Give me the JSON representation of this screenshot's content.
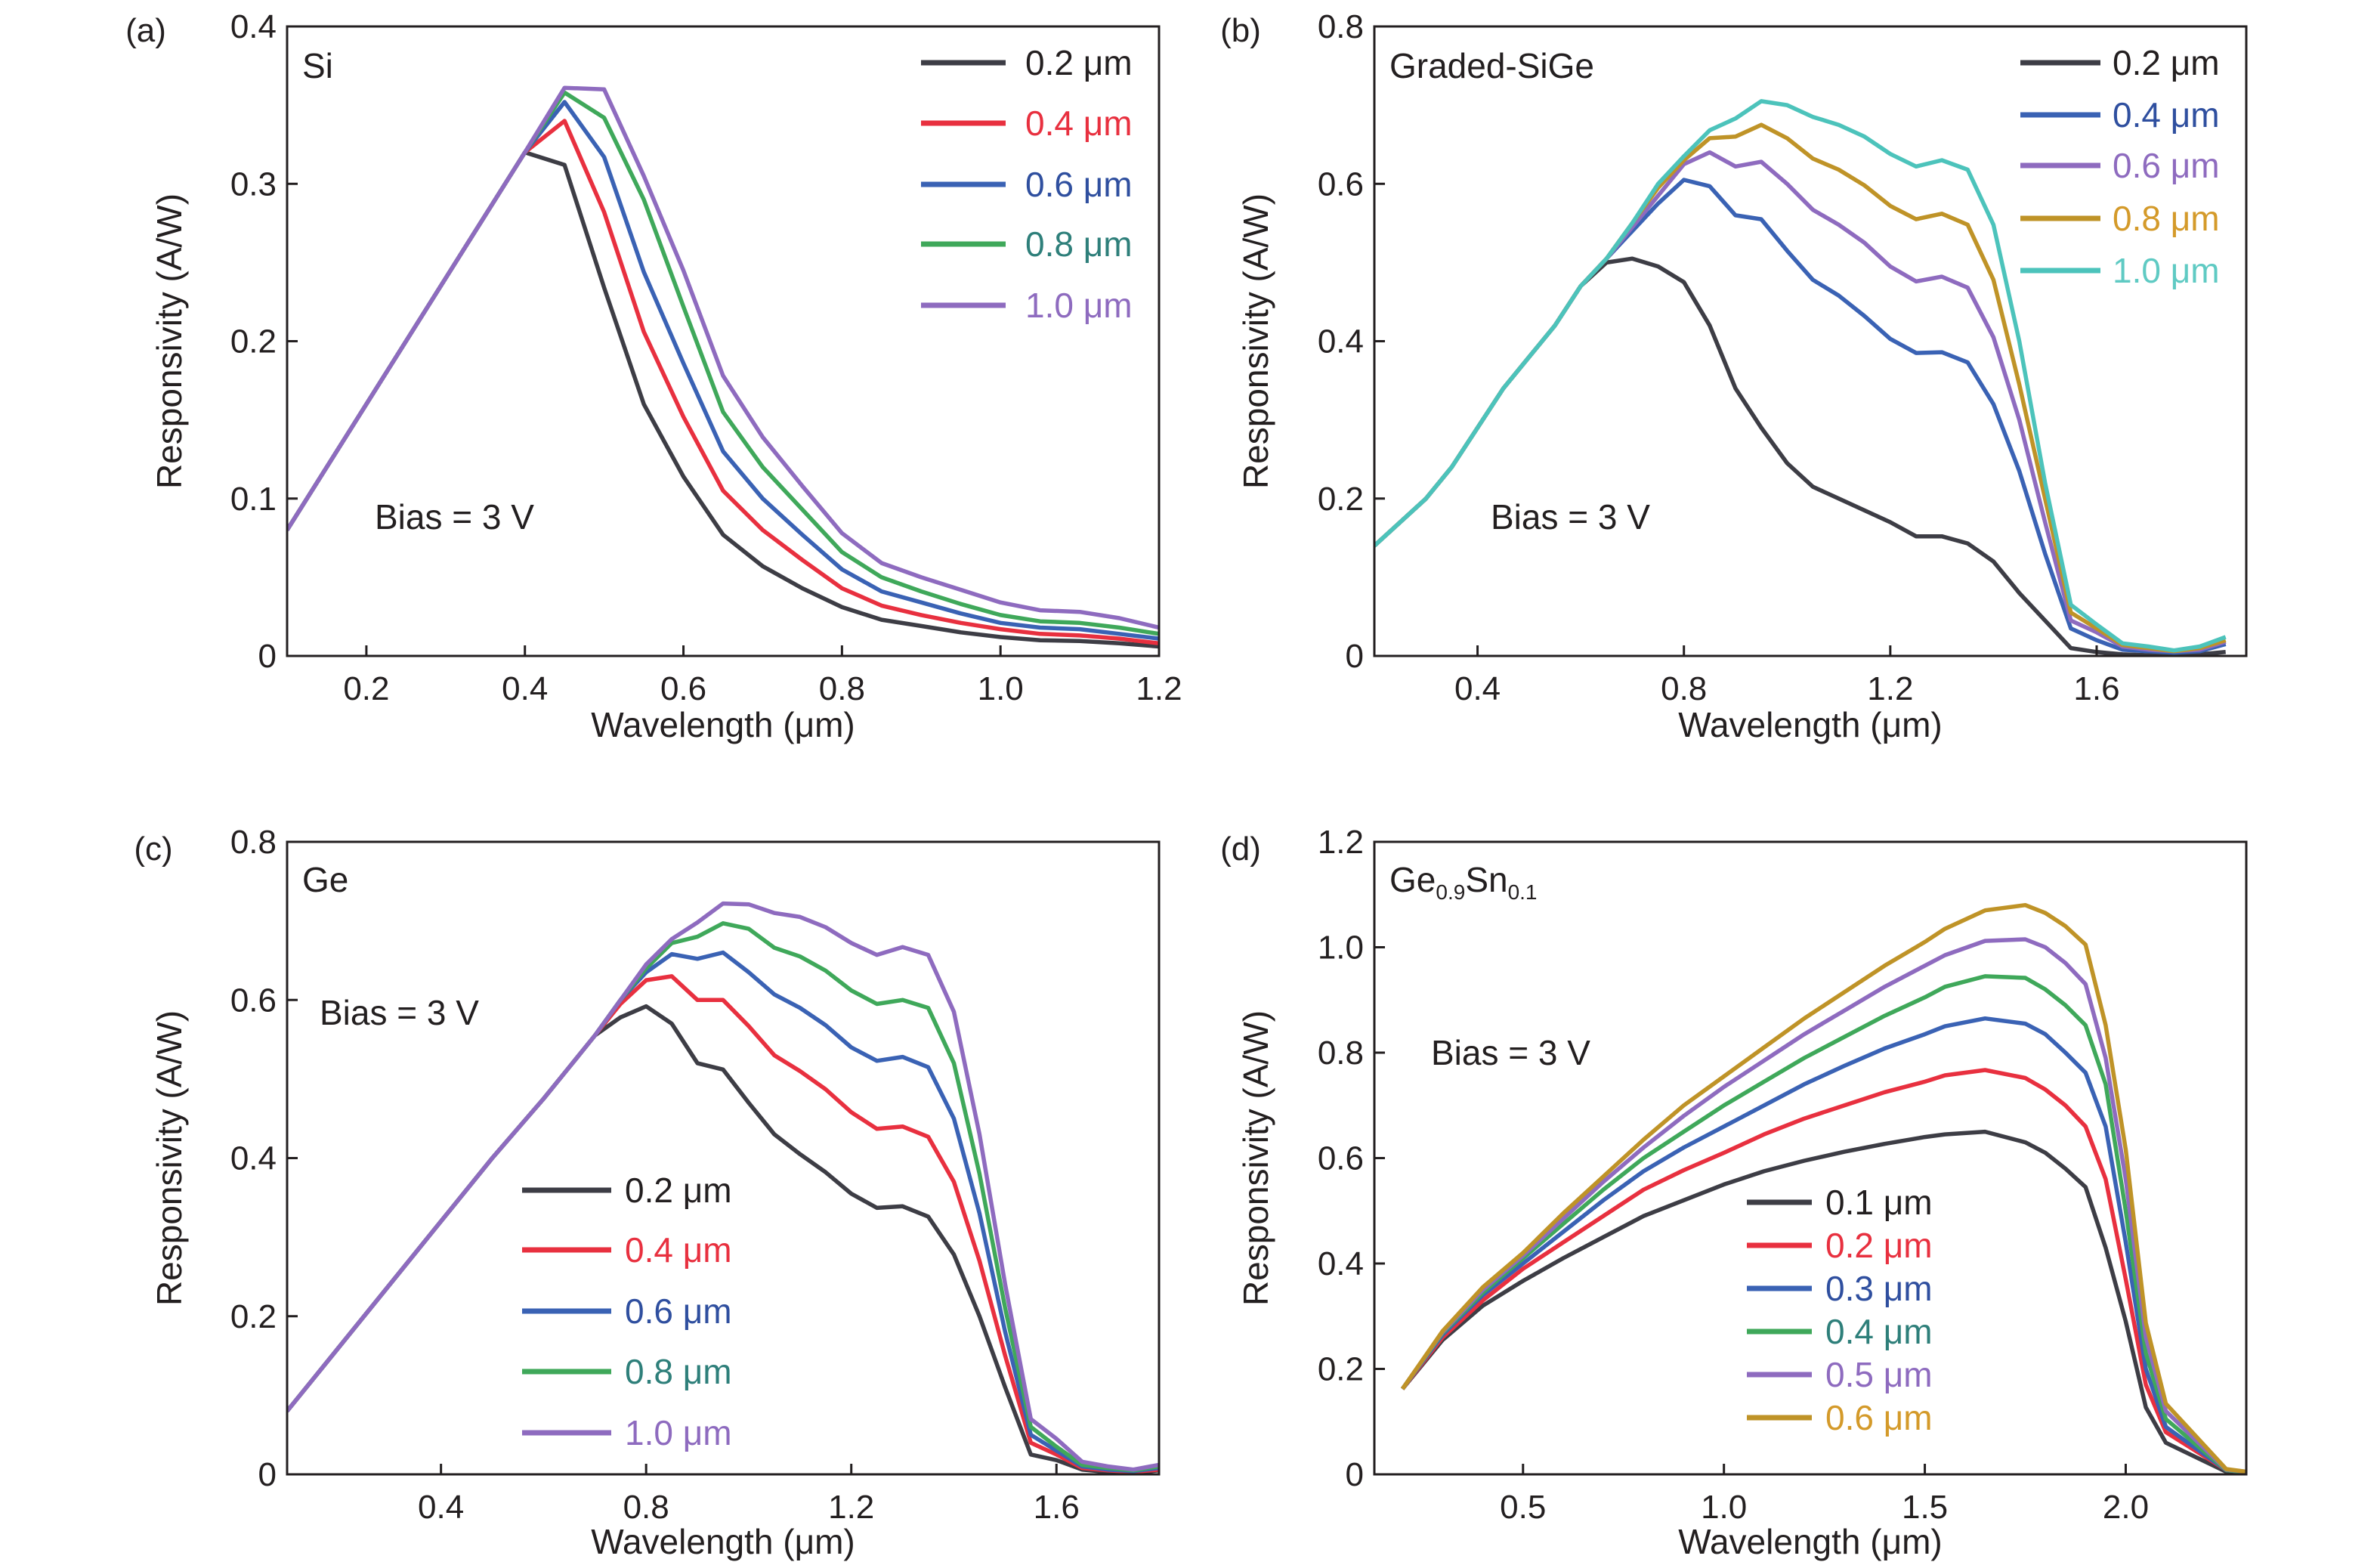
{
  "chart_data": [
    {
      "type": "line",
      "panel_label": "(a)",
      "material": {
        "main": "Si"
      },
      "annotation": "Bias = 3 V",
      "xlabel": "Wavelength (μm)",
      "ylabel": "Responsivity  (A/W)",
      "xlim": [
        0.1,
        1.2
      ],
      "ylim": [
        0,
        0.4
      ],
      "xticks": [
        0.2,
        0.4,
        0.6,
        0.8,
        1.0,
        1.2
      ],
      "xtick_labels": [
        "0.2",
        "0.4",
        "0.6",
        "0.8",
        "1.0",
        "1.2"
      ],
      "yticks": [
        0,
        0.1,
        0.2,
        0.3,
        0.4
      ],
      "ytick_labels": [
        "0",
        "0.1",
        "0.2",
        "0.3",
        "0.4"
      ],
      "legend_position": "top-right",
      "x": [
        0.1,
        0.2,
        0.3,
        0.4,
        0.45,
        0.5,
        0.55,
        0.6,
        0.65,
        0.7,
        0.75,
        0.8,
        0.85,
        0.9,
        0.95,
        1.0,
        1.05,
        1.1,
        1.15,
        1.2
      ],
      "series": [
        {
          "name": "0.2 μm",
          "color": "#3d3d45",
          "label_color": "#231f20",
          "values": [
            0.08,
            0.16,
            0.24,
            0.32,
            0.312,
            0.234,
            0.16,
            0.114,
            0.077,
            0.057,
            0.043,
            0.031,
            0.023,
            0.019,
            0.015,
            0.012,
            0.01,
            0.0095,
            0.008,
            0.006
          ]
        },
        {
          "name": "0.4 μm",
          "color": "#e8303f",
          "label_color": "#e8303f",
          "values": [
            0.08,
            0.16,
            0.24,
            0.32,
            0.34,
            0.282,
            0.206,
            0.152,
            0.105,
            0.08,
            0.061,
            0.043,
            0.032,
            0.026,
            0.021,
            0.017,
            0.014,
            0.013,
            0.011,
            0.008
          ]
        },
        {
          "name": "0.6 μm",
          "color": "#3a62b4",
          "label_color": "#2f4f9f",
          "values": [
            0.08,
            0.16,
            0.24,
            0.32,
            0.352,
            0.317,
            0.244,
            0.186,
            0.13,
            0.1,
            0.077,
            0.055,
            0.041,
            0.034,
            0.027,
            0.021,
            0.018,
            0.017,
            0.014,
            0.011
          ]
        },
        {
          "name": "0.8 μm",
          "color": "#3fa85a",
          "label_color": "#2e7f7a",
          "values": [
            0.08,
            0.16,
            0.24,
            0.32,
            0.358,
            0.342,
            0.29,
            0.222,
            0.155,
            0.12,
            0.093,
            0.066,
            0.05,
            0.041,
            0.033,
            0.026,
            0.022,
            0.021,
            0.018,
            0.014
          ]
        },
        {
          "name": "1.0 μm",
          "color": "#8e6bbf",
          "label_color": "#8e6bbf",
          "values": [
            0.08,
            0.16,
            0.24,
            0.32,
            0.361,
            0.36,
            0.305,
            0.245,
            0.178,
            0.139,
            0.108,
            0.078,
            0.059,
            0.05,
            0.042,
            0.034,
            0.029,
            0.028,
            0.024,
            0.018
          ]
        }
      ]
    },
    {
      "type": "line",
      "panel_label": "(b)",
      "material": {
        "main": "Graded-SiGe"
      },
      "annotation": "Bias = 3 V",
      "xlabel": "Wavelength (μm)",
      "ylabel": "Responsivity  (A/W)",
      "xlim": [
        0.2,
        1.89
      ],
      "ylim": [
        0,
        0.8
      ],
      "xticks": [
        0.4,
        0.8,
        1.2,
        1.6
      ],
      "xtick_labels": [
        "0.4",
        "0.8",
        "1.2",
        "1.6"
      ],
      "yticks": [
        0,
        0.2,
        0.4,
        0.6,
        0.8
      ],
      "ytick_labels": [
        "0",
        "0.2",
        "0.4",
        "0.6",
        "0.8"
      ],
      "legend_position": "top-right",
      "x": [
        0.2,
        0.3,
        0.35,
        0.4,
        0.45,
        0.5,
        0.55,
        0.6,
        0.65,
        0.7,
        0.75,
        0.8,
        0.85,
        0.9,
        0.95,
        1.0,
        1.05,
        1.1,
        1.15,
        1.2,
        1.25,
        1.3,
        1.35,
        1.4,
        1.45,
        1.5,
        1.55,
        1.6,
        1.65,
        1.7,
        1.75,
        1.8,
        1.85
      ],
      "series": [
        {
          "name": "0.2 μm",
          "color": "#3d3d45",
          "label_color": "#231f20",
          "values": [
            0.14,
            0.2,
            0.24,
            0.29,
            0.34,
            0.38,
            0.42,
            0.47,
            0.5,
            0.505,
            0.495,
            0.475,
            0.42,
            0.34,
            0.29,
            0.245,
            0.215,
            0.2,
            0.185,
            0.17,
            0.152,
            0.152,
            0.143,
            0.12,
            0.08,
            0.045,
            0.01,
            0.005,
            0.002,
            0.001,
            0.001,
            0.002,
            0.005
          ]
        },
        {
          "name": "0.4 μm",
          "color": "#3a62b4",
          "label_color": "#2f4f9f",
          "values": [
            0.14,
            0.2,
            0.24,
            0.29,
            0.34,
            0.38,
            0.42,
            0.47,
            0.505,
            0.54,
            0.575,
            0.605,
            0.597,
            0.56,
            0.555,
            0.515,
            0.478,
            0.458,
            0.432,
            0.403,
            0.385,
            0.386,
            0.373,
            0.32,
            0.235,
            0.13,
            0.035,
            0.02,
            0.008,
            0.006,
            0.004,
            0.006,
            0.015
          ]
        },
        {
          "name": "0.6 μm",
          "color": "#8e6bbf",
          "label_color": "#8e6bbf",
          "values": [
            0.14,
            0.2,
            0.24,
            0.29,
            0.34,
            0.38,
            0.42,
            0.47,
            0.505,
            0.545,
            0.585,
            0.625,
            0.64,
            0.622,
            0.628,
            0.6,
            0.567,
            0.548,
            0.525,
            0.495,
            0.476,
            0.482,
            0.468,
            0.405,
            0.3,
            0.17,
            0.045,
            0.03,
            0.012,
            0.008,
            0.006,
            0.008,
            0.018
          ]
        },
        {
          "name": "0.8 μm",
          "color": "#bf9327",
          "label_color": "#d49a2a",
          "values": [
            0.14,
            0.2,
            0.24,
            0.29,
            0.34,
            0.38,
            0.42,
            0.47,
            0.505,
            0.55,
            0.595,
            0.63,
            0.658,
            0.66,
            0.675,
            0.658,
            0.632,
            0.618,
            0.598,
            0.572,
            0.555,
            0.562,
            0.548,
            0.478,
            0.345,
            0.2,
            0.055,
            0.035,
            0.014,
            0.01,
            0.006,
            0.01,
            0.02
          ]
        },
        {
          "name": "1.0 μm",
          "color": "#4cc3bb",
          "label_color": "#5fcac3",
          "values": [
            0.14,
            0.2,
            0.24,
            0.29,
            0.34,
            0.38,
            0.42,
            0.47,
            0.505,
            0.55,
            0.6,
            0.635,
            0.668,
            0.683,
            0.705,
            0.7,
            0.685,
            0.675,
            0.66,
            0.638,
            0.622,
            0.63,
            0.618,
            0.548,
            0.4,
            0.22,
            0.065,
            0.04,
            0.016,
            0.012,
            0.007,
            0.012,
            0.024
          ]
        }
      ]
    },
    {
      "type": "line",
      "panel_label": "(c)",
      "material": {
        "main": "Ge"
      },
      "annotation": "Bias = 3 V",
      "xlabel": "Wavelength (μm)",
      "ylabel": "Responsivity (A/W)",
      "xlim": [
        0.1,
        1.8
      ],
      "ylim": [
        0,
        0.8
      ],
      "xticks": [
        0.4,
        0.8,
        1.2,
        1.6
      ],
      "xtick_labels": [
        "0.4",
        "0.8",
        "1.2",
        "1.6"
      ],
      "yticks": [
        0,
        0.2,
        0.4,
        0.6,
        0.8
      ],
      "ytick_labels": [
        "0",
        "0.2",
        "0.4",
        "0.6",
        "0.8"
      ],
      "legend_position": "bottom-center",
      "x": [
        0.1,
        0.2,
        0.3,
        0.4,
        0.5,
        0.6,
        0.65,
        0.7,
        0.75,
        0.8,
        0.85,
        0.9,
        0.95,
        1.0,
        1.05,
        1.1,
        1.15,
        1.2,
        1.25,
        1.3,
        1.35,
        1.4,
        1.45,
        1.5,
        1.55,
        1.6,
        1.65,
        1.7,
        1.75,
        1.8
      ],
      "series": [
        {
          "name": "0.2 μm",
          "color": "#3d3d45",
          "label_color": "#231f20",
          "values": [
            0.08,
            0.16,
            0.24,
            0.32,
            0.4,
            0.475,
            0.515,
            0.555,
            0.578,
            0.592,
            0.57,
            0.52,
            0.512,
            0.47,
            0.43,
            0.405,
            0.382,
            0.355,
            0.337,
            0.339,
            0.326,
            0.278,
            0.2,
            0.11,
            0.025,
            0.018,
            0.006,
            0.003,
            0.002,
            0.005
          ]
        },
        {
          "name": "0.4 μm",
          "color": "#e8303f",
          "label_color": "#e8303f",
          "values": [
            0.08,
            0.16,
            0.24,
            0.32,
            0.4,
            0.475,
            0.515,
            0.555,
            0.595,
            0.625,
            0.63,
            0.6,
            0.6,
            0.567,
            0.53,
            0.51,
            0.487,
            0.458,
            0.437,
            0.44,
            0.427,
            0.37,
            0.27,
            0.15,
            0.04,
            0.025,
            0.008,
            0.005,
            0.003,
            0.006
          ]
        },
        {
          "name": "0.6 μm",
          "color": "#3a62b4",
          "label_color": "#2f4f9f",
          "values": [
            0.08,
            0.16,
            0.24,
            0.32,
            0.4,
            0.475,
            0.515,
            0.555,
            0.6,
            0.635,
            0.658,
            0.652,
            0.66,
            0.635,
            0.607,
            0.59,
            0.568,
            0.54,
            0.523,
            0.528,
            0.515,
            0.45,
            0.33,
            0.18,
            0.05,
            0.03,
            0.01,
            0.006,
            0.004,
            0.008
          ]
        },
        {
          "name": "0.8 μm",
          "color": "#3fa85a",
          "label_color": "#2e7f7a",
          "values": [
            0.08,
            0.16,
            0.24,
            0.32,
            0.4,
            0.475,
            0.515,
            0.555,
            0.6,
            0.64,
            0.672,
            0.68,
            0.697,
            0.69,
            0.666,
            0.655,
            0.637,
            0.612,
            0.595,
            0.6,
            0.59,
            0.52,
            0.38,
            0.21,
            0.06,
            0.035,
            0.012,
            0.008,
            0.005,
            0.01
          ]
        },
        {
          "name": "1.0 μm",
          "color": "#8e6bbf",
          "label_color": "#8e6bbf",
          "values": [
            0.08,
            0.16,
            0.24,
            0.32,
            0.4,
            0.475,
            0.515,
            0.555,
            0.6,
            0.645,
            0.677,
            0.698,
            0.722,
            0.721,
            0.71,
            0.705,
            0.692,
            0.672,
            0.657,
            0.667,
            0.657,
            0.585,
            0.43,
            0.24,
            0.07,
            0.045,
            0.016,
            0.01,
            0.006,
            0.012
          ]
        }
      ]
    },
    {
      "type": "line",
      "panel_label": "(d)",
      "material": {
        "main": "Ge",
        "sub1": "0.9",
        "main2": "Sn",
        "sub2": "0.1"
      },
      "annotation": "Bias = 3 V",
      "xlabel": "Wavelength (μm)",
      "ylabel": "Responsivity (A/W)",
      "xlim": [
        0.13,
        2.3
      ],
      "ylim": [
        0,
        1.2
      ],
      "xticks": [
        0.5,
        1.0,
        1.5,
        2.0
      ],
      "xtick_labels": [
        "0.5",
        "1.0",
        "1.5",
        "2.0"
      ],
      "yticks": [
        0,
        0.2,
        0.4,
        0.6,
        0.8,
        1.0,
        1.2
      ],
      "ytick_labels": [
        "0",
        "0.2",
        "0.4",
        "0.6",
        "0.8",
        "1.0",
        "1.2"
      ],
      "legend_position": "bottom-center",
      "x": [
        0.2,
        0.3,
        0.4,
        0.5,
        0.6,
        0.7,
        0.8,
        0.9,
        1.0,
        1.1,
        1.2,
        1.3,
        1.4,
        1.5,
        1.55,
        1.65,
        1.75,
        1.8,
        1.85,
        1.9,
        1.95,
        2.0,
        2.05,
        2.1,
        2.25,
        2.3
      ],
      "series": [
        {
          "name": "0.1 μm",
          "color": "#3d3d45",
          "label_color": "#231f20",
          "values": [
            0.162,
            0.255,
            0.32,
            0.367,
            0.41,
            0.45,
            0.49,
            0.52,
            0.55,
            0.575,
            0.595,
            0.612,
            0.627,
            0.64,
            0.645,
            0.65,
            0.63,
            0.61,
            0.58,
            0.545,
            0.43,
            0.29,
            0.127,
            0.06,
            0.005,
            0.003
          ]
        },
        {
          "name": "0.2 μm",
          "color": "#e8303f",
          "label_color": "#e8303f",
          "values": [
            0.162,
            0.26,
            0.33,
            0.39,
            0.44,
            0.49,
            0.54,
            0.577,
            0.61,
            0.645,
            0.675,
            0.7,
            0.725,
            0.745,
            0.757,
            0.767,
            0.752,
            0.73,
            0.7,
            0.66,
            0.56,
            0.37,
            0.17,
            0.08,
            0.008,
            0.004
          ]
        },
        {
          "name": "0.3 μm",
          "color": "#3a62b4",
          "label_color": "#2f4f9f",
          "values": [
            0.162,
            0.265,
            0.34,
            0.4,
            0.46,
            0.52,
            0.575,
            0.62,
            0.66,
            0.7,
            0.74,
            0.775,
            0.808,
            0.835,
            0.85,
            0.865,
            0.855,
            0.835,
            0.8,
            0.762,
            0.66,
            0.44,
            0.2,
            0.09,
            0.008,
            0.004
          ]
        },
        {
          "name": "0.4 μm",
          "color": "#3fa85a",
          "label_color": "#2e7f7a",
          "values": [
            0.162,
            0.268,
            0.345,
            0.41,
            0.475,
            0.54,
            0.6,
            0.65,
            0.7,
            0.745,
            0.79,
            0.83,
            0.87,
            0.905,
            0.925,
            0.945,
            0.942,
            0.92,
            0.89,
            0.852,
            0.74,
            0.5,
            0.23,
            0.105,
            0.008,
            0.004
          ]
        },
        {
          "name": "0.5 μm",
          "color": "#8e6bbf",
          "label_color": "#8e6bbf",
          "values": [
            0.162,
            0.27,
            0.35,
            0.415,
            0.485,
            0.555,
            0.62,
            0.68,
            0.735,
            0.785,
            0.835,
            0.88,
            0.925,
            0.965,
            0.985,
            1.012,
            1.015,
            1.0,
            0.97,
            0.93,
            0.79,
            0.56,
            0.26,
            0.12,
            0.009,
            0.005
          ]
        },
        {
          "name": "0.6 μm",
          "color": "#bf9327",
          "label_color": "#d49a2a",
          "values": [
            0.162,
            0.272,
            0.355,
            0.42,
            0.495,
            0.565,
            0.635,
            0.7,
            0.755,
            0.81,
            0.865,
            0.915,
            0.965,
            1.01,
            1.035,
            1.07,
            1.08,
            1.065,
            1.04,
            1.005,
            0.852,
            0.616,
            0.287,
            0.134,
            0.01,
            0.005
          ]
        }
      ]
    }
  ]
}
